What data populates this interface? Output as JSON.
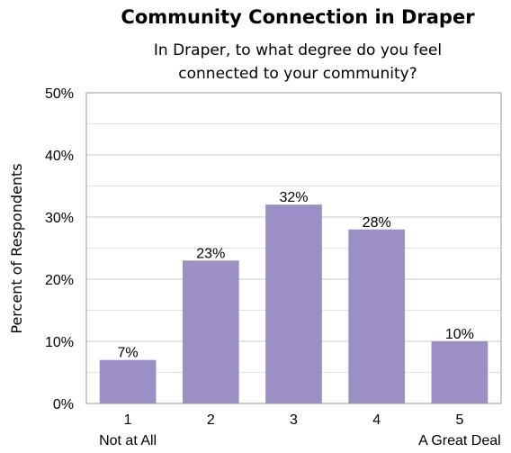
{
  "chart_data": {
    "type": "bar",
    "title": "Community Connection in Draper",
    "subtitle_lines": [
      "In Draper, to what degree do you feel",
      "connected to your community?"
    ],
    "ylabel": "Percent of Respondents",
    "xlabel": "",
    "categories": [
      "1",
      "2",
      "3",
      "4",
      "5"
    ],
    "category_sublabels": [
      "Not at All",
      "",
      "",
      "",
      "A Great Deal"
    ],
    "values": [
      7,
      23,
      32,
      28,
      10
    ],
    "data_labels": [
      "7%",
      "23%",
      "32%",
      "28%",
      "10%"
    ],
    "ylim": [
      0,
      50
    ],
    "yticks": [
      0,
      10,
      20,
      30,
      40,
      50
    ],
    "ytick_labels": [
      "0%",
      "10%",
      "20%",
      "30%",
      "40%",
      "50%"
    ],
    "grid": true,
    "legend": "none",
    "bar_color": "#9b8fc5",
    "grid_color": "#c8c8c8"
  }
}
